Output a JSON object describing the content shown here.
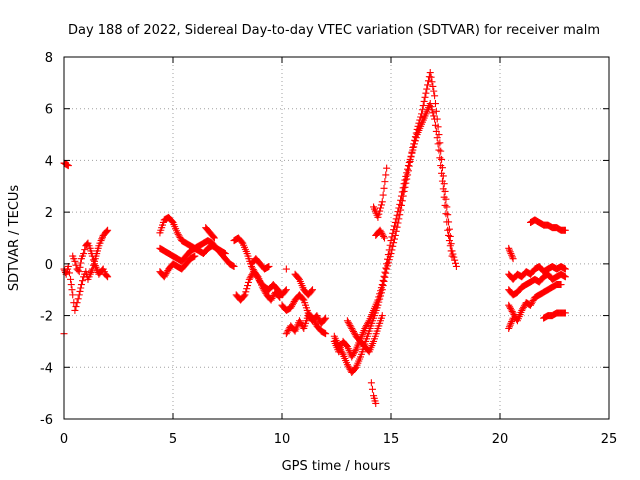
{
  "chart_data": {
    "type": "scatter",
    "title": "Day 188 of 2022, Sidereal Day-to-day VTEC variation (SDTVAR) for receiver malm",
    "xlabel": "GPS time / hours",
    "ylabel": "SDTVAR / TECUs",
    "xlim": [
      0,
      25
    ],
    "ylim": [
      -6,
      8
    ],
    "xticks": [
      0,
      5,
      10,
      15,
      20,
      25
    ],
    "yticks": [
      -6,
      -4,
      -2,
      0,
      2,
      4,
      6,
      8
    ],
    "grid": true,
    "marker": "+",
    "marker_color": "#ff0000",
    "series": [
      {
        "name": "SDTVAR",
        "segments": [
          {
            "x": [
              0.0,
              0.1,
              0.2
            ],
            "y": [
              3.9,
              3.85,
              3.8
            ]
          },
          {
            "x": [
              0.0
            ],
            "y": [
              -2.7
            ]
          },
          {
            "x": [
              0.0,
              0.1,
              0.2,
              0.3,
              0.4,
              0.5,
              0.6,
              0.7,
              0.8,
              0.9,
              1.0,
              1.1,
              1.2,
              1.3,
              1.4,
              1.5,
              1.6,
              1.7,
              1.8,
              1.9,
              2.0
            ],
            "y": [
              -0.2,
              -0.4,
              -0.1,
              -0.6,
              -1.2,
              -1.8,
              -1.5,
              -1.2,
              -0.8,
              -0.5,
              -0.3,
              -0.6,
              -0.4,
              -0.2,
              0.1,
              0.4,
              0.7,
              0.9,
              1.1,
              1.2,
              1.3
            ]
          },
          {
            "x": [
              0.4,
              0.5,
              0.6,
              0.7,
              0.8,
              0.9,
              1.0,
              1.1,
              1.2,
              1.3,
              1.4,
              1.5,
              1.6,
              1.7,
              1.8,
              1.9,
              2.0
            ],
            "y": [
              0.3,
              0.1,
              -0.2,
              -0.3,
              0.2,
              0.4,
              0.7,
              0.8,
              0.6,
              0.3,
              0.0,
              -0.2,
              -0.4,
              -0.3,
              -0.2,
              -0.4,
              -0.5
            ]
          },
          {
            "x": [
              4.4,
              4.6,
              4.8,
              5.0,
              5.2,
              5.4,
              5.6,
              5.8,
              6.0,
              6.2,
              6.4,
              6.6,
              6.8,
              7.0,
              7.2,
              7.4,
              7.6,
              7.8
            ],
            "y": [
              1.2,
              1.7,
              1.8,
              1.6,
              1.2,
              0.9,
              0.8,
              0.7,
              0.6,
              0.7,
              0.8,
              0.9,
              0.8,
              0.6,
              0.4,
              0.2,
              0.0,
              -0.1
            ]
          },
          {
            "x": [
              4.4,
              4.6,
              4.8,
              5.0,
              5.2,
              5.4,
              5.6,
              5.8,
              6.0,
              6.2,
              6.4,
              6.6,
              6.8,
              7.0,
              7.2,
              7.4
            ],
            "y": [
              0.6,
              0.5,
              0.4,
              0.3,
              0.2,
              0.1,
              0.3,
              0.5,
              0.6,
              0.5,
              0.4,
              0.6,
              0.7,
              0.6,
              0.5,
              0.4
            ]
          },
          {
            "x": [
              4.4,
              4.6,
              4.8,
              5.0,
              5.2,
              5.4,
              5.6,
              5.8,
              6.0
            ],
            "y": [
              -0.3,
              -0.5,
              -0.2,
              0.0,
              -0.1,
              -0.2,
              0.0,
              0.2,
              0.3
            ]
          },
          {
            "x": [
              6.5,
              6.7,
              6.9
            ],
            "y": [
              1.4,
              1.2,
              1.0
            ]
          },
          {
            "x": [
              7.8,
              8.0,
              8.2,
              8.4,
              8.6,
              8.8,
              9.0,
              9.2,
              9.4,
              9.6,
              9.8,
              10.0,
              10.2
            ],
            "y": [
              0.9,
              1.0,
              0.8,
              0.4,
              -0.1,
              -0.4,
              -0.7,
              -0.9,
              -1.0,
              -0.8,
              -1.0,
              -1.2,
              -1.0
            ]
          },
          {
            "x": [
              7.9,
              8.1,
              8.3,
              8.5,
              8.7,
              8.9,
              9.1,
              9.3,
              9.5,
              9.7,
              9.9
            ],
            "y": [
              -1.2,
              -1.4,
              -1.2,
              -0.6,
              -0.3,
              -0.5,
              -0.9,
              -1.2,
              -1.4,
              -1.1,
              -1.3
            ]
          },
          {
            "x": [
              8.6,
              8.8,
              9.0,
              9.2,
              9.4
            ],
            "y": [
              0.0,
              0.2,
              0.0,
              -0.2,
              -0.1
            ]
          },
          {
            "x": [
              10.2
            ],
            "y": [
              -0.2
            ]
          },
          {
            "x": [
              10.0,
              10.2,
              10.4,
              10.6,
              10.8,
              11.0,
              11.2,
              11.4,
              11.6,
              11.8,
              12.0
            ],
            "y": [
              -1.6,
              -1.8,
              -1.7,
              -1.4,
              -1.2,
              -1.4,
              -1.9,
              -2.1,
              -2.4,
              -2.6,
              -2.7
            ]
          },
          {
            "x": [
              10.2,
              10.4,
              10.6,
              10.8,
              11.0,
              11.2,
              11.4,
              11.6,
              11.8,
              12.0
            ],
            "y": [
              -2.7,
              -2.4,
              -2.6,
              -2.2,
              -2.5,
              -2.0,
              -2.2,
              -2.0,
              -2.3,
              -2.1
            ]
          },
          {
            "x": [
              10.6,
              10.8,
              11.0,
              11.2,
              11.4
            ],
            "y": [
              -0.4,
              -0.6,
              -1.0,
              -1.2,
              -1.0
            ]
          },
          {
            "x": [
              12.4,
              12.6,
              12.8,
              13.0,
              13.2,
              13.4,
              13.6,
              13.8,
              14.0,
              14.2,
              14.4,
              14.6,
              14.8,
              15.0,
              15.2,
              15.4,
              15.6,
              15.8,
              16.0,
              16.2,
              16.4,
              16.6,
              16.8,
              17.0,
              17.2,
              17.4,
              17.6,
              17.8,
              18.0
            ],
            "y": [
              -2.8,
              -3.2,
              -3.5,
              -3.9,
              -4.2,
              -4.0,
              -3.6,
              -3.1,
              -2.6,
              -2.1,
              -1.6,
              -1.0,
              -0.2,
              0.4,
              1.1,
              1.9,
              2.8,
              3.6,
              4.5,
              5.2,
              5.8,
              6.6,
              7.4,
              6.5,
              5.0,
              3.4,
              1.9,
              0.5,
              -0.1
            ]
          },
          {
            "x": [
              12.4,
              12.6,
              12.8,
              13.0,
              13.2,
              13.4,
              13.6,
              13.8,
              14.0,
              14.2,
              14.4,
              14.6,
              14.8,
              15.0,
              15.2,
              15.4,
              15.6,
              15.8,
              16.0,
              16.2,
              16.4,
              16.6,
              16.8,
              17.0,
              17.2,
              17.4,
              17.6,
              17.8
            ],
            "y": [
              -3.0,
              -3.4,
              -3.0,
              -3.2,
              -3.6,
              -3.3,
              -2.9,
              -2.5,
              -2.2,
              -1.8,
              -1.4,
              -0.8,
              0.0,
              0.9,
              1.6,
              2.3,
              3.1,
              3.8,
              4.4,
              5.0,
              5.4,
              5.8,
              6.2,
              5.6,
              4.4,
              2.9,
              1.3,
              0.3
            ]
          },
          {
            "x": [
              13.0,
              13.2,
              13.4,
              13.6,
              13.8,
              14.0,
              14.2,
              14.4,
              14.6
            ],
            "y": [
              -2.2,
              -2.5,
              -2.8,
              -3.0,
              -3.2,
              -3.4,
              -3.0,
              -2.5,
              -2.0
            ]
          },
          {
            "x": [
              14.1,
              14.2,
              14.3
            ],
            "y": [
              -4.6,
              -5.1,
              -5.4
            ]
          },
          {
            "x": [
              14.2,
              14.4,
              14.6,
              14.8
            ],
            "y": [
              2.2,
              1.8,
              2.4,
              3.7
            ]
          },
          {
            "x": [
              14.3,
              14.5,
              14.7
            ],
            "y": [
              1.1,
              1.3,
              1.0
            ]
          },
          {
            "x": [
              20.4,
              20.6,
              20.8,
              21.0,
              21.2,
              21.4,
              21.6,
              21.8,
              22.0,
              22.2,
              22.4,
              22.6,
              22.8,
              23.0
            ],
            "y": [
              -0.4,
              -0.6,
              -0.4,
              -0.5,
              -0.3,
              -0.4,
              -0.2,
              -0.1,
              -0.3,
              -0.2,
              -0.1,
              -0.2,
              -0.1,
              -0.2
            ]
          },
          {
            "x": [
              20.4,
              20.6,
              20.8,
              21.0,
              21.2,
              21.4,
              21.6,
              21.8,
              22.0,
              22.2,
              22.4,
              22.6,
              22.8,
              23.0
            ],
            "y": [
              -1.0,
              -1.2,
              -1.1,
              -0.9,
              -0.8,
              -0.7,
              -0.6,
              -0.7,
              -0.5,
              -0.4,
              -0.6,
              -0.5,
              -0.4,
              -0.5
            ]
          },
          {
            "x": [
              20.4,
              20.6,
              20.8,
              21.0,
              21.2,
              21.4,
              21.6,
              21.8,
              22.0,
              22.2,
              22.4,
              22.6,
              22.8
            ],
            "y": [
              -1.6,
              -1.9,
              -2.2,
              -1.8,
              -1.5,
              -1.6,
              -1.3,
              -1.2,
              -1.1,
              -1.0,
              -0.9,
              -0.8,
              -0.8
            ]
          },
          {
            "x": [
              20.4,
              20.5,
              20.6
            ],
            "y": [
              0.6,
              0.4,
              0.2
            ]
          },
          {
            "x": [
              20.4,
              20.5,
              20.6
            ],
            "y": [
              -2.5,
              -2.3,
              -2.1
            ]
          },
          {
            "x": [
              21.4,
              21.6,
              21.8,
              22.0,
              22.2,
              22.4,
              22.6,
              22.8,
              23.0
            ],
            "y": [
              1.6,
              1.7,
              1.6,
              1.5,
              1.5,
              1.4,
              1.4,
              1.3,
              1.3
            ]
          },
          {
            "x": [
              22.0,
              22.2,
              22.4,
              22.6,
              22.8,
              23.0
            ],
            "y": [
              -2.1,
              -2.0,
              -2.0,
              -1.9,
              -1.9,
              -1.9
            ]
          }
        ]
      }
    ]
  }
}
